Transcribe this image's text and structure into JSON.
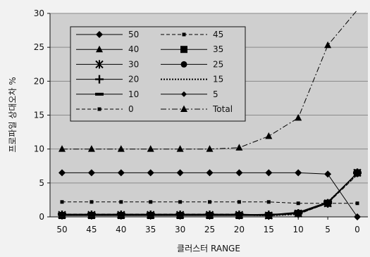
{
  "chart_data": {
    "type": "line",
    "xlabel": "클러스터 RANGE",
    "ylabel": "프로파일 상대오차 %",
    "x": [
      "50",
      "45",
      "40",
      "35",
      "30",
      "25",
      "20",
      "15",
      "10",
      "5",
      "0"
    ],
    "ylim": [
      0,
      30
    ],
    "yticks": [
      "0",
      "5",
      "10",
      "15",
      "20",
      "25",
      "30"
    ],
    "grid": true,
    "legend_position": "upper-left",
    "series": [
      {
        "name": "50",
        "values": [
          6.5,
          6.5,
          6.5,
          6.5,
          6.5,
          6.5,
          6.5,
          6.5,
          6.5,
          6.3,
          0
        ],
        "marker": "diamond",
        "dash": "solid"
      },
      {
        "name": "45",
        "values": [
          2.2,
          2.2,
          2.2,
          2.2,
          2.2,
          2.2,
          2.2,
          2.2,
          2.0,
          2.0,
          2.0
        ],
        "marker": "smallsquare",
        "dash": "dashed"
      },
      {
        "name": "40",
        "values": [
          0.3,
          0.3,
          0.3,
          0.3,
          0.3,
          0.3,
          0.3,
          0.4,
          0.5,
          2.0,
          6.5
        ],
        "marker": "triangle",
        "dash": "solid"
      },
      {
        "name": "35",
        "values": [
          0.2,
          0.2,
          0.2,
          0.2,
          0.2,
          0.2,
          0.2,
          0.2,
          0.5,
          2.0,
          6.5
        ],
        "marker": "square",
        "dash": "solid"
      },
      {
        "name": "30",
        "values": [
          0.3,
          0.3,
          0.3,
          0.3,
          0.3,
          0.3,
          0.3,
          0.2,
          0.5,
          2.0,
          6.5
        ],
        "marker": "star",
        "dash": "solid"
      },
      {
        "name": "25",
        "values": [
          0.3,
          0.3,
          0.3,
          0.3,
          0.3,
          0.3,
          0.3,
          0.3,
          0.6,
          2.1,
          6.5
        ],
        "marker": "circle",
        "dash": "solid"
      },
      {
        "name": "20",
        "values": [
          0.3,
          0.3,
          0.3,
          0.3,
          0.3,
          0.3,
          0.3,
          0.3,
          0.5,
          2.0,
          6.5
        ],
        "marker": "plus",
        "dash": "solid"
      },
      {
        "name": "15",
        "values": [
          0.3,
          0.3,
          0.3,
          0.3,
          0.3,
          0.3,
          0.3,
          0.2,
          0.4,
          2.2,
          6.3
        ],
        "marker": "none",
        "dash": "dotted"
      },
      {
        "name": "10",
        "values": [
          0.4,
          0.4,
          0.4,
          0.4,
          0.4,
          0.4,
          0.4,
          0.3,
          0.7,
          2.2,
          6.5
        ],
        "marker": "bar",
        "dash": "solid"
      },
      {
        "name": "5",
        "values": [
          0.3,
          0.3,
          0.3,
          0.3,
          0.3,
          0.3,
          0.3,
          0.3,
          0.5,
          2.0,
          6.5
        ],
        "marker": "smalldiamond",
        "dash": "solid"
      },
      {
        "name": "0",
        "values": [
          0.4,
          0.4,
          0.4,
          0.4,
          0.4,
          0.4,
          0.4,
          0.2,
          0.4,
          2.0,
          6.2
        ],
        "marker": "smallsquare",
        "dash": "dashed"
      },
      {
        "name": "Total",
        "values": [
          10.0,
          10.0,
          10.0,
          10.0,
          10.0,
          10.0,
          10.2,
          11.9,
          14.6,
          25.3,
          32.0
        ],
        "marker": "triangle",
        "dash": "dashdot"
      }
    ]
  }
}
